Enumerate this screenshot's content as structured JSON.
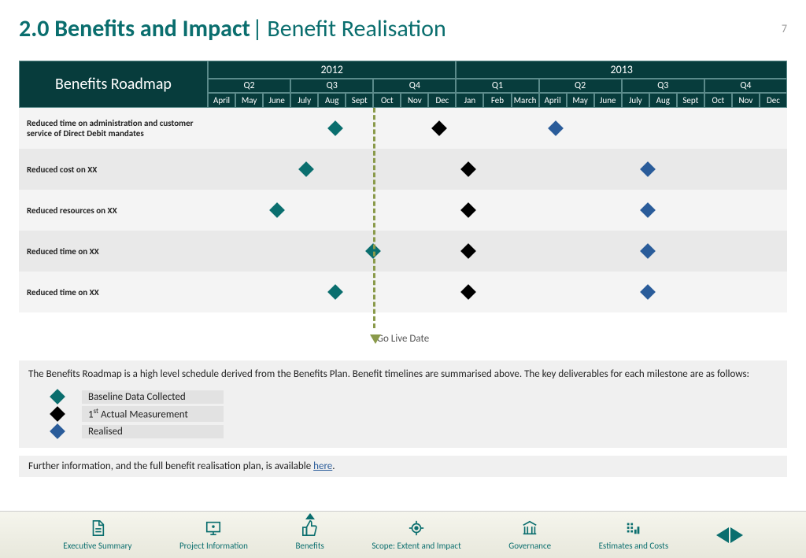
{
  "page_number": "7",
  "title": {
    "bold": "2.0 Benefits and Impact",
    "light": "Benefit Realisation"
  },
  "roadmap": {
    "title": "Benefits Roadmap",
    "years": [
      "2012",
      "2013"
    ],
    "quarters": [
      "Q2",
      "Q3",
      "Q4",
      "Q1",
      "Q2",
      "Q3",
      "Q4"
    ],
    "quarter_spans": [
      3,
      3,
      3,
      3,
      3,
      3,
      3
    ],
    "months": [
      "April",
      "May",
      "June",
      "July",
      "Aug",
      "Sept",
      "Oct",
      "Nov",
      "Dec",
      "Jan",
      "Feb",
      "March",
      "April",
      "May",
      "June",
      "July",
      "Aug",
      "Sept",
      "Oct",
      "Nov",
      "Dec"
    ],
    "golive_label": "Go Live Date",
    "golive_pct": 28.5,
    "rows": [
      {
        "label": "Reduced time on administration and customer service of Direct Debit mandates",
        "points": [
          {
            "pct": 22,
            "c": "d-green"
          },
          {
            "pct": 40,
            "c": "d-black"
          },
          {
            "pct": 60,
            "c": "d-blue"
          }
        ]
      },
      {
        "label": "Reduced cost on XX",
        "points": [
          {
            "pct": 17,
            "c": "d-green"
          },
          {
            "pct": 45,
            "c": "d-black"
          },
          {
            "pct": 76,
            "c": "d-blue"
          }
        ]
      },
      {
        "label": "Reduced resources on XX",
        "points": [
          {
            "pct": 12,
            "c": "d-green"
          },
          {
            "pct": 45,
            "c": "d-black"
          },
          {
            "pct": 76,
            "c": "d-blue"
          }
        ]
      },
      {
        "label": "Reduced time on XX",
        "points": [
          {
            "pct": 28.5,
            "c": "d-green"
          },
          {
            "pct": 45,
            "c": "d-black"
          },
          {
            "pct": 76,
            "c": "d-blue"
          }
        ]
      },
      {
        "label": "Reduced time on XX",
        "points": [
          {
            "pct": 22,
            "c": "d-green"
          },
          {
            "pct": 45,
            "c": "d-black"
          },
          {
            "pct": 76,
            "c": "d-blue"
          }
        ]
      }
    ]
  },
  "description": "The Benefits Roadmap is a high level schedule derived from the Benefits Plan. Benefit timelines are summarised above. The key deliverables for each milestone are as follows:",
  "legend": [
    {
      "c": "d-green",
      "label": "Baseline Data Collected"
    },
    {
      "c": "d-black",
      "label_html": "1<sup>st</sup> Actual Measurement"
    },
    {
      "c": "d-blue",
      "label": "Realised"
    }
  ],
  "further": {
    "pre": "Further information, and the full benefit realisation plan, is available ",
    "link": "here",
    "post": "."
  },
  "nav": [
    {
      "label": "Executive Summary",
      "icon": "doc"
    },
    {
      "label": "Project Information",
      "icon": "screen"
    },
    {
      "label": "Benefits",
      "icon": "thumb",
      "active": true
    },
    {
      "label": "Scope: Extent and Impact",
      "icon": "target"
    },
    {
      "label": "Governance",
      "icon": "building"
    },
    {
      "label": "Estimates and Costs",
      "icon": "bars"
    }
  ]
}
